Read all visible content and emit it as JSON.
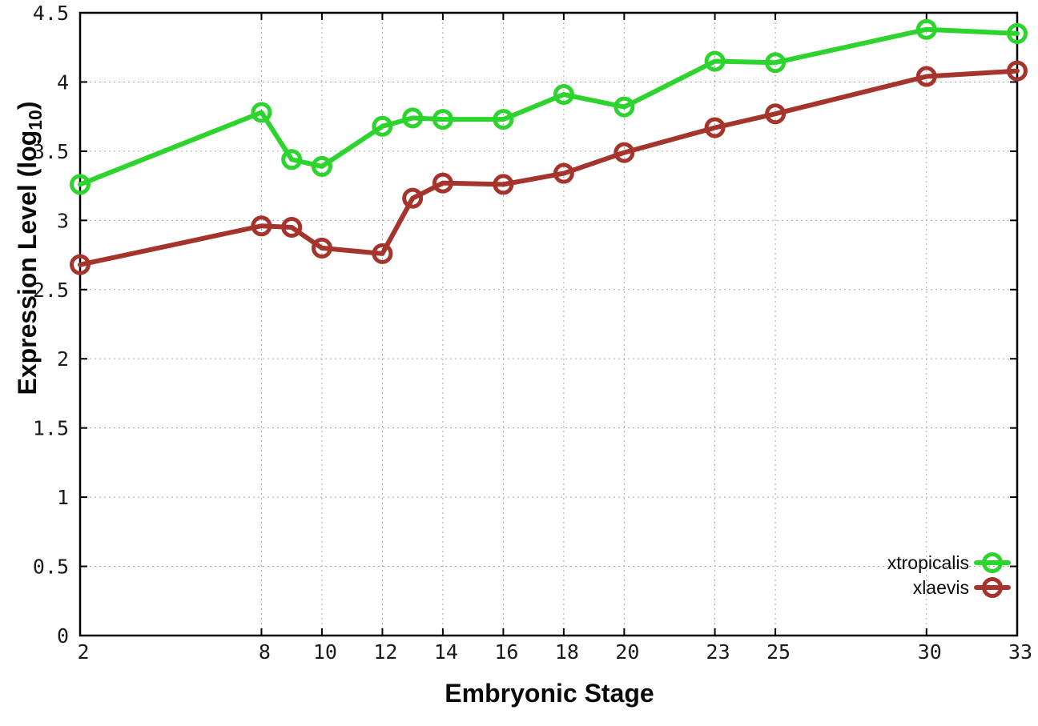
{
  "labels": {
    "xlabel": "Embryonic Stage",
    "ylabel_pre": "Expression Level (log",
    "ylabel_sub": "10",
    "ylabel_post": ")"
  },
  "chart_data": {
    "type": "line",
    "title": "",
    "xlabel": "Embryonic Stage",
    "ylabel": "Expression Level (log10)",
    "xlim": [
      2,
      33
    ],
    "ylim": [
      0,
      4.5
    ],
    "grid": true,
    "legend_position": "bottom-right",
    "x_ticks": [
      2,
      8,
      10,
      12,
      14,
      16,
      18,
      20,
      23,
      25,
      30,
      33
    ],
    "y_ticks": [
      0,
      0.5,
      1,
      1.5,
      2,
      2.5,
      3,
      3.5,
      4,
      4.5
    ],
    "x": [
      2,
      8,
      9,
      10,
      12,
      13,
      14,
      16,
      18,
      20,
      23,
      25,
      30,
      33
    ],
    "series": [
      {
        "name": "xtropicalis",
        "color": "#2dd42d",
        "values": [
          3.26,
          3.78,
          3.44,
          3.39,
          3.68,
          3.74,
          3.73,
          3.73,
          3.91,
          3.82,
          4.15,
          4.14,
          4.38,
          4.35
        ]
      },
      {
        "name": "xlaevis",
        "color": "#a5342c",
        "values": [
          2.68,
          2.96,
          2.95,
          2.8,
          2.76,
          3.16,
          3.27,
          3.26,
          3.34,
          3.49,
          3.67,
          3.77,
          4.04,
          4.08
        ]
      }
    ],
    "style": {
      "grid_color": "#a8a8a8",
      "axis_color": "#000000",
      "tick_label_color": "#1a1a1a",
      "legend_text_color": "#0a0a0a",
      "background": "#ffffff"
    }
  }
}
